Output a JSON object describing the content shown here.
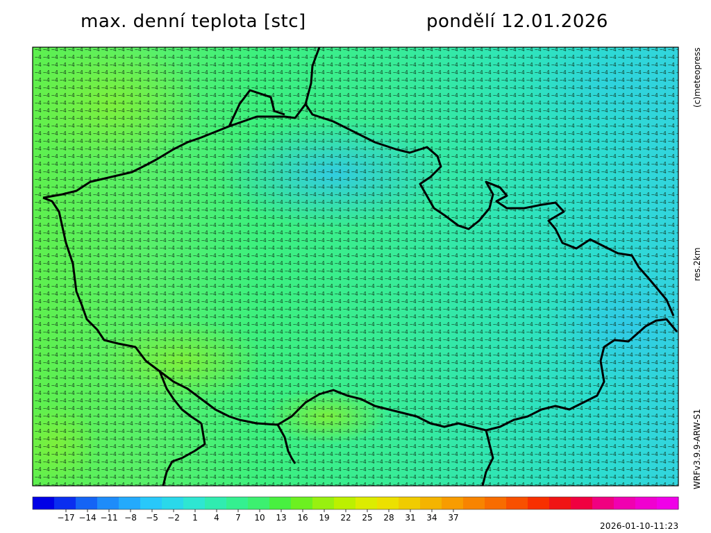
{
  "header": {
    "title": "max. denní teplota [stc]",
    "date": "pondělí 12.01.2026"
  },
  "side": {
    "credit": "(c)meteopress",
    "resolution": "res.2km",
    "model": "WRFv3.9.9-ARW-S1"
  },
  "footer": {
    "timestamp": "2026-01-10-11:23"
  },
  "legend": {
    "tick_labels": [
      "−17",
      "−14",
      "−11",
      "−8",
      "−5",
      "−2",
      "1",
      "4",
      "7",
      "10",
      "13",
      "16",
      "19",
      "22",
      "25",
      "28",
      "31",
      "34",
      "37"
    ],
    "colors": [
      "#0000e6",
      "#0a2ef0",
      "#1464f5",
      "#1e8cfa",
      "#24aafc",
      "#28c8fa",
      "#2ad8ea",
      "#2ee6d2",
      "#30ecb0",
      "#34f090",
      "#3cf070",
      "#48f040",
      "#6cf020",
      "#98f010",
      "#bcf000",
      "#dcec00",
      "#ece000",
      "#f0cc00",
      "#f4b400",
      "#f89c00",
      "#f88400",
      "#f86c00",
      "#f85000",
      "#f83000",
      "#f01414",
      "#f00040",
      "#f00080",
      "#f000b0",
      "#f000d0",
      "#f000e8"
    ]
  },
  "map": {
    "legend_values": [
      "-17",
      "-14",
      "-11",
      "-8",
      "-5",
      "-2",
      "1",
      "4",
      "7",
      "10",
      "13",
      "16",
      "19",
      "22",
      "25",
      "28",
      "31",
      "34",
      "37"
    ]
  }
}
